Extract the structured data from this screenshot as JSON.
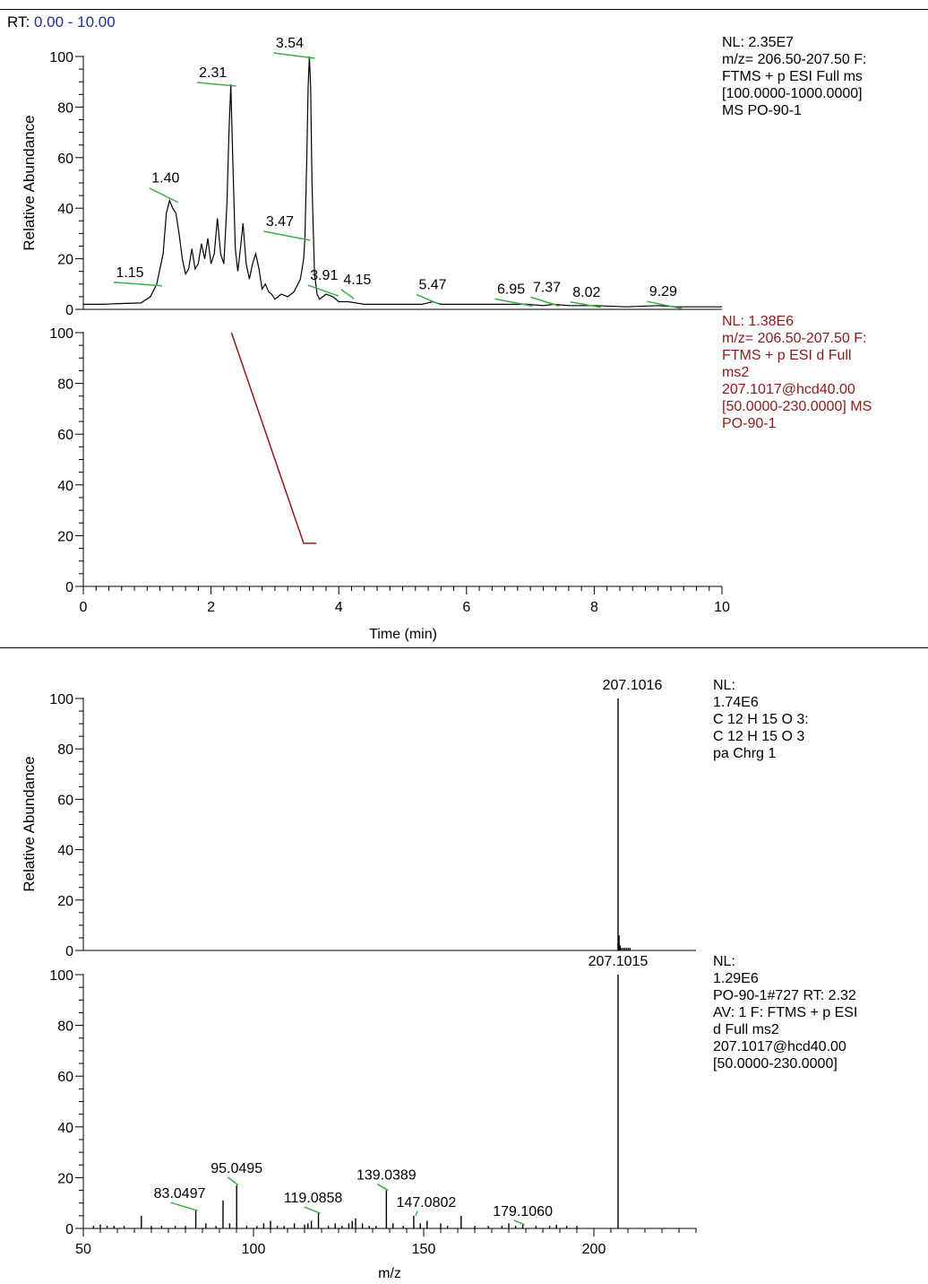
{
  "rt_header": {
    "label": "RT:",
    "range": "0.00 - 10.00"
  },
  "info_panels": {
    "chrom1": [
      "NL: 2.35E7",
      "m/z= 206.50-207.50 F:",
      "FTMS + p ESI Full ms",
      "[100.0000-1000.0000]",
      "MS PO-90-1"
    ],
    "chrom2": [
      "NL: 1.38E6",
      "m/z= 206.50-207.50 F:",
      "FTMS + p ESI d Full",
      "ms2",
      "207.1017@hcd40.00",
      "[50.0000-230.0000]  MS",
      "PO-90-1"
    ],
    "spec1": [
      "NL:",
      "1.74E6",
      "C 12 H 15 O 3:",
      "C 12 H 15 O 3",
      "pa Chrg 1"
    ],
    "spec2": [
      "NL:",
      "1.29E6",
      "PO-90-1#727  RT: 2.32",
      "AV: 1 F: FTMS + p ESI",
      "d Full ms2",
      "207.1017@hcd40.00",
      "[50.0000-230.0000]"
    ]
  },
  "colors": {
    "chrom2_trace": "#8b1a1a",
    "annotation_leader": "#3cb043",
    "rt_range": "#1f2fa8"
  },
  "chart_data": [
    {
      "type": "line",
      "id": "chrom1",
      "xlim": [
        0,
        10
      ],
      "ylim": [
        0,
        100
      ],
      "ylabel": "Relative Abundance",
      "yticks": [
        "0",
        "20",
        "40",
        "60",
        "80",
        "100"
      ],
      "x": [
        0,
        0.3,
        0.6,
        0.9,
        1.05,
        1.15,
        1.25,
        1.3,
        1.35,
        1.4,
        1.45,
        1.5,
        1.55,
        1.6,
        1.65,
        1.7,
        1.75,
        1.8,
        1.85,
        1.9,
        1.95,
        2.0,
        2.05,
        2.1,
        2.15,
        2.2,
        2.25,
        2.28,
        2.31,
        2.34,
        2.38,
        2.42,
        2.46,
        2.5,
        2.55,
        2.6,
        2.65,
        2.7,
        2.75,
        2.8,
        2.85,
        2.9,
        2.95,
        3.0,
        3.1,
        3.2,
        3.3,
        3.4,
        3.45,
        3.47,
        3.5,
        3.52,
        3.54,
        3.56,
        3.58,
        3.62,
        3.66,
        3.7,
        3.8,
        3.91,
        4.0,
        4.15,
        4.4,
        4.7,
        5.0,
        5.3,
        5.47,
        5.6,
        6.0,
        6.5,
        6.95,
        7.2,
        7.37,
        7.6,
        8.02,
        8.5,
        9.0,
        9.29,
        9.6,
        10.0
      ],
      "y": [
        2,
        2,
        2.3,
        2.5,
        5,
        10,
        22,
        38,
        43,
        40,
        38,
        30,
        20,
        14,
        16,
        24,
        16,
        18,
        26,
        20,
        28,
        18,
        22,
        36,
        22,
        18,
        42,
        70,
        89,
        60,
        24,
        15,
        24,
        34,
        18,
        12,
        18,
        22,
        16,
        8,
        10,
        7,
        6,
        4,
        6,
        5,
        7,
        12,
        20,
        28,
        60,
        88,
        100,
        88,
        50,
        14,
        6,
        4,
        6,
        5,
        3,
        3,
        2,
        2,
        2,
        2,
        3,
        2,
        2,
        2,
        2,
        1.5,
        2,
        1.5,
        1.5,
        1,
        1.5,
        1,
        1,
        1
      ],
      "peak_labels": [
        {
          "x": 1.15,
          "y": 10,
          "label": "1.15"
        },
        {
          "x": 1.4,
          "y": 43,
          "label": "1.40"
        },
        {
          "x": 2.31,
          "y": 89,
          "label": "2.31"
        },
        {
          "x": 3.47,
          "y": 28,
          "label": "3.47"
        },
        {
          "x": 3.54,
          "y": 100,
          "label": "3.54"
        },
        {
          "x": 3.91,
          "y": 6,
          "label": "3.91"
        },
        {
          "x": 4.15,
          "y": 5,
          "label": "4.15"
        },
        {
          "x": 5.47,
          "y": 3,
          "label": "5.47"
        },
        {
          "x": 6.95,
          "y": 2,
          "label": "6.95"
        },
        {
          "x": 7.37,
          "y": 2,
          "label": "7.37"
        },
        {
          "x": 8.02,
          "y": 1.5,
          "label": "8.02"
        },
        {
          "x": 9.29,
          "y": 1,
          "label": "9.29"
        }
      ]
    },
    {
      "type": "line",
      "id": "chrom2",
      "xlim": [
        0,
        10
      ],
      "ylim": [
        0,
        100
      ],
      "xlabel": "Time (min)",
      "xticks": [
        "0",
        "2",
        "4",
        "6",
        "8",
        "10"
      ],
      "yticks": [
        "0",
        "20",
        "40",
        "60",
        "80",
        "100"
      ],
      "x": [
        2.32,
        3.45,
        3.65
      ],
      "y": [
        100,
        17,
        17
      ]
    },
    {
      "type": "bar",
      "id": "spec1",
      "xlim": [
        50,
        230
      ],
      "ylim": [
        0,
        100
      ],
      "ylabel": "Relative Abundance",
      "yticks": [
        "0",
        "20",
        "40",
        "60",
        "80",
        "100"
      ],
      "x": [
        207.1016,
        207.4,
        207.7,
        208.1,
        208.6,
        209.1,
        209.6,
        210.1,
        210.6
      ],
      "y": [
        100,
        6,
        2,
        1,
        1,
        1,
        1,
        1,
        1
      ],
      "peak_labels": [
        {
          "x": 207.1016,
          "y": 100,
          "label": "207.1016"
        }
      ]
    },
    {
      "type": "bar",
      "id": "spec2",
      "xlim": [
        50,
        230
      ],
      "ylim": [
        0,
        100
      ],
      "xlabel": "m/z",
      "xticks": [
        "50",
        "100",
        "150",
        "200"
      ],
      "yticks": [
        "0",
        "20",
        "40",
        "60",
        "80",
        "100"
      ],
      "x": [
        53,
        55,
        57,
        59,
        62,
        67.05,
        70,
        73,
        77,
        80,
        83.0497,
        86,
        89,
        91.05,
        93,
        95.0495,
        98,
        101,
        103,
        105,
        107,
        109,
        112,
        115,
        116,
        117,
        119.0858,
        122,
        124,
        126,
        128,
        129,
        130,
        132,
        134,
        136,
        139.0389,
        141,
        144,
        147.0802,
        149,
        151,
        155,
        157,
        161,
        165,
        169,
        173,
        175,
        177,
        179.106,
        183,
        187,
        189,
        192,
        195,
        207.1015
      ],
      "y": [
        1,
        1.5,
        1,
        1,
        1,
        5,
        1,
        1,
        1,
        1,
        7,
        2,
        1,
        11,
        2,
        17,
        1,
        1,
        2,
        3,
        1,
        1,
        2,
        1.5,
        2,
        3,
        6,
        1,
        2,
        1,
        2,
        3,
        4,
        2,
        1,
        1,
        15,
        2,
        1,
        5,
        2,
        3,
        2,
        1,
        5,
        1,
        1,
        1,
        2,
        1,
        1.5,
        1,
        1,
        1.5,
        1,
        1,
        100
      ],
      "peak_labels": [
        {
          "x": 83.0497,
          "y": 7,
          "label": "83.0497"
        },
        {
          "x": 95.0495,
          "y": 17,
          "label": "95.0495"
        },
        {
          "x": 119.0858,
          "y": 6,
          "label": "119.0858"
        },
        {
          "x": 139.0389,
          "y": 15,
          "label": "139.0389"
        },
        {
          "x": 147.0802,
          "y": 5,
          "label": "147.0802"
        },
        {
          "x": 179.106,
          "y": 1.5,
          "label": "179.1060"
        },
        {
          "x": 207.1015,
          "y": 100,
          "label": "207.1015"
        }
      ]
    }
  ]
}
